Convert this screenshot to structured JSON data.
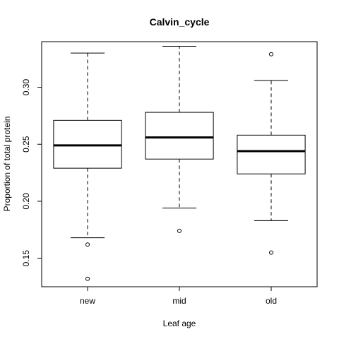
{
  "chart_data": {
    "type": "box",
    "title": "Calvin_cycle",
    "xlabel": "Leaf age",
    "ylabel": "Proportion of total protein",
    "categories": [
      "new",
      "mid",
      "old"
    ],
    "ylim": [
      0.125,
      0.34
    ],
    "yticks": [
      0.15,
      0.2,
      0.25,
      0.3
    ],
    "ytick_labels": [
      "0.15",
      "0.20",
      "0.25",
      "0.30"
    ],
    "grid": false,
    "legend": "none",
    "boxes": [
      {
        "category": "new",
        "whisker_low": 0.168,
        "q1": 0.229,
        "median": 0.249,
        "q3": 0.271,
        "whisker_high": 0.33,
        "outliers": [
          0.162,
          0.132
        ]
      },
      {
        "category": "mid",
        "whisker_low": 0.194,
        "q1": 0.237,
        "median": 0.256,
        "q3": 0.278,
        "whisker_high": 0.336,
        "outliers": [
          0.174
        ]
      },
      {
        "category": "old",
        "whisker_low": 0.183,
        "q1": 0.224,
        "median": 0.244,
        "q3": 0.258,
        "whisker_high": 0.306,
        "outliers": [
          0.329,
          0.155
        ]
      }
    ]
  }
}
